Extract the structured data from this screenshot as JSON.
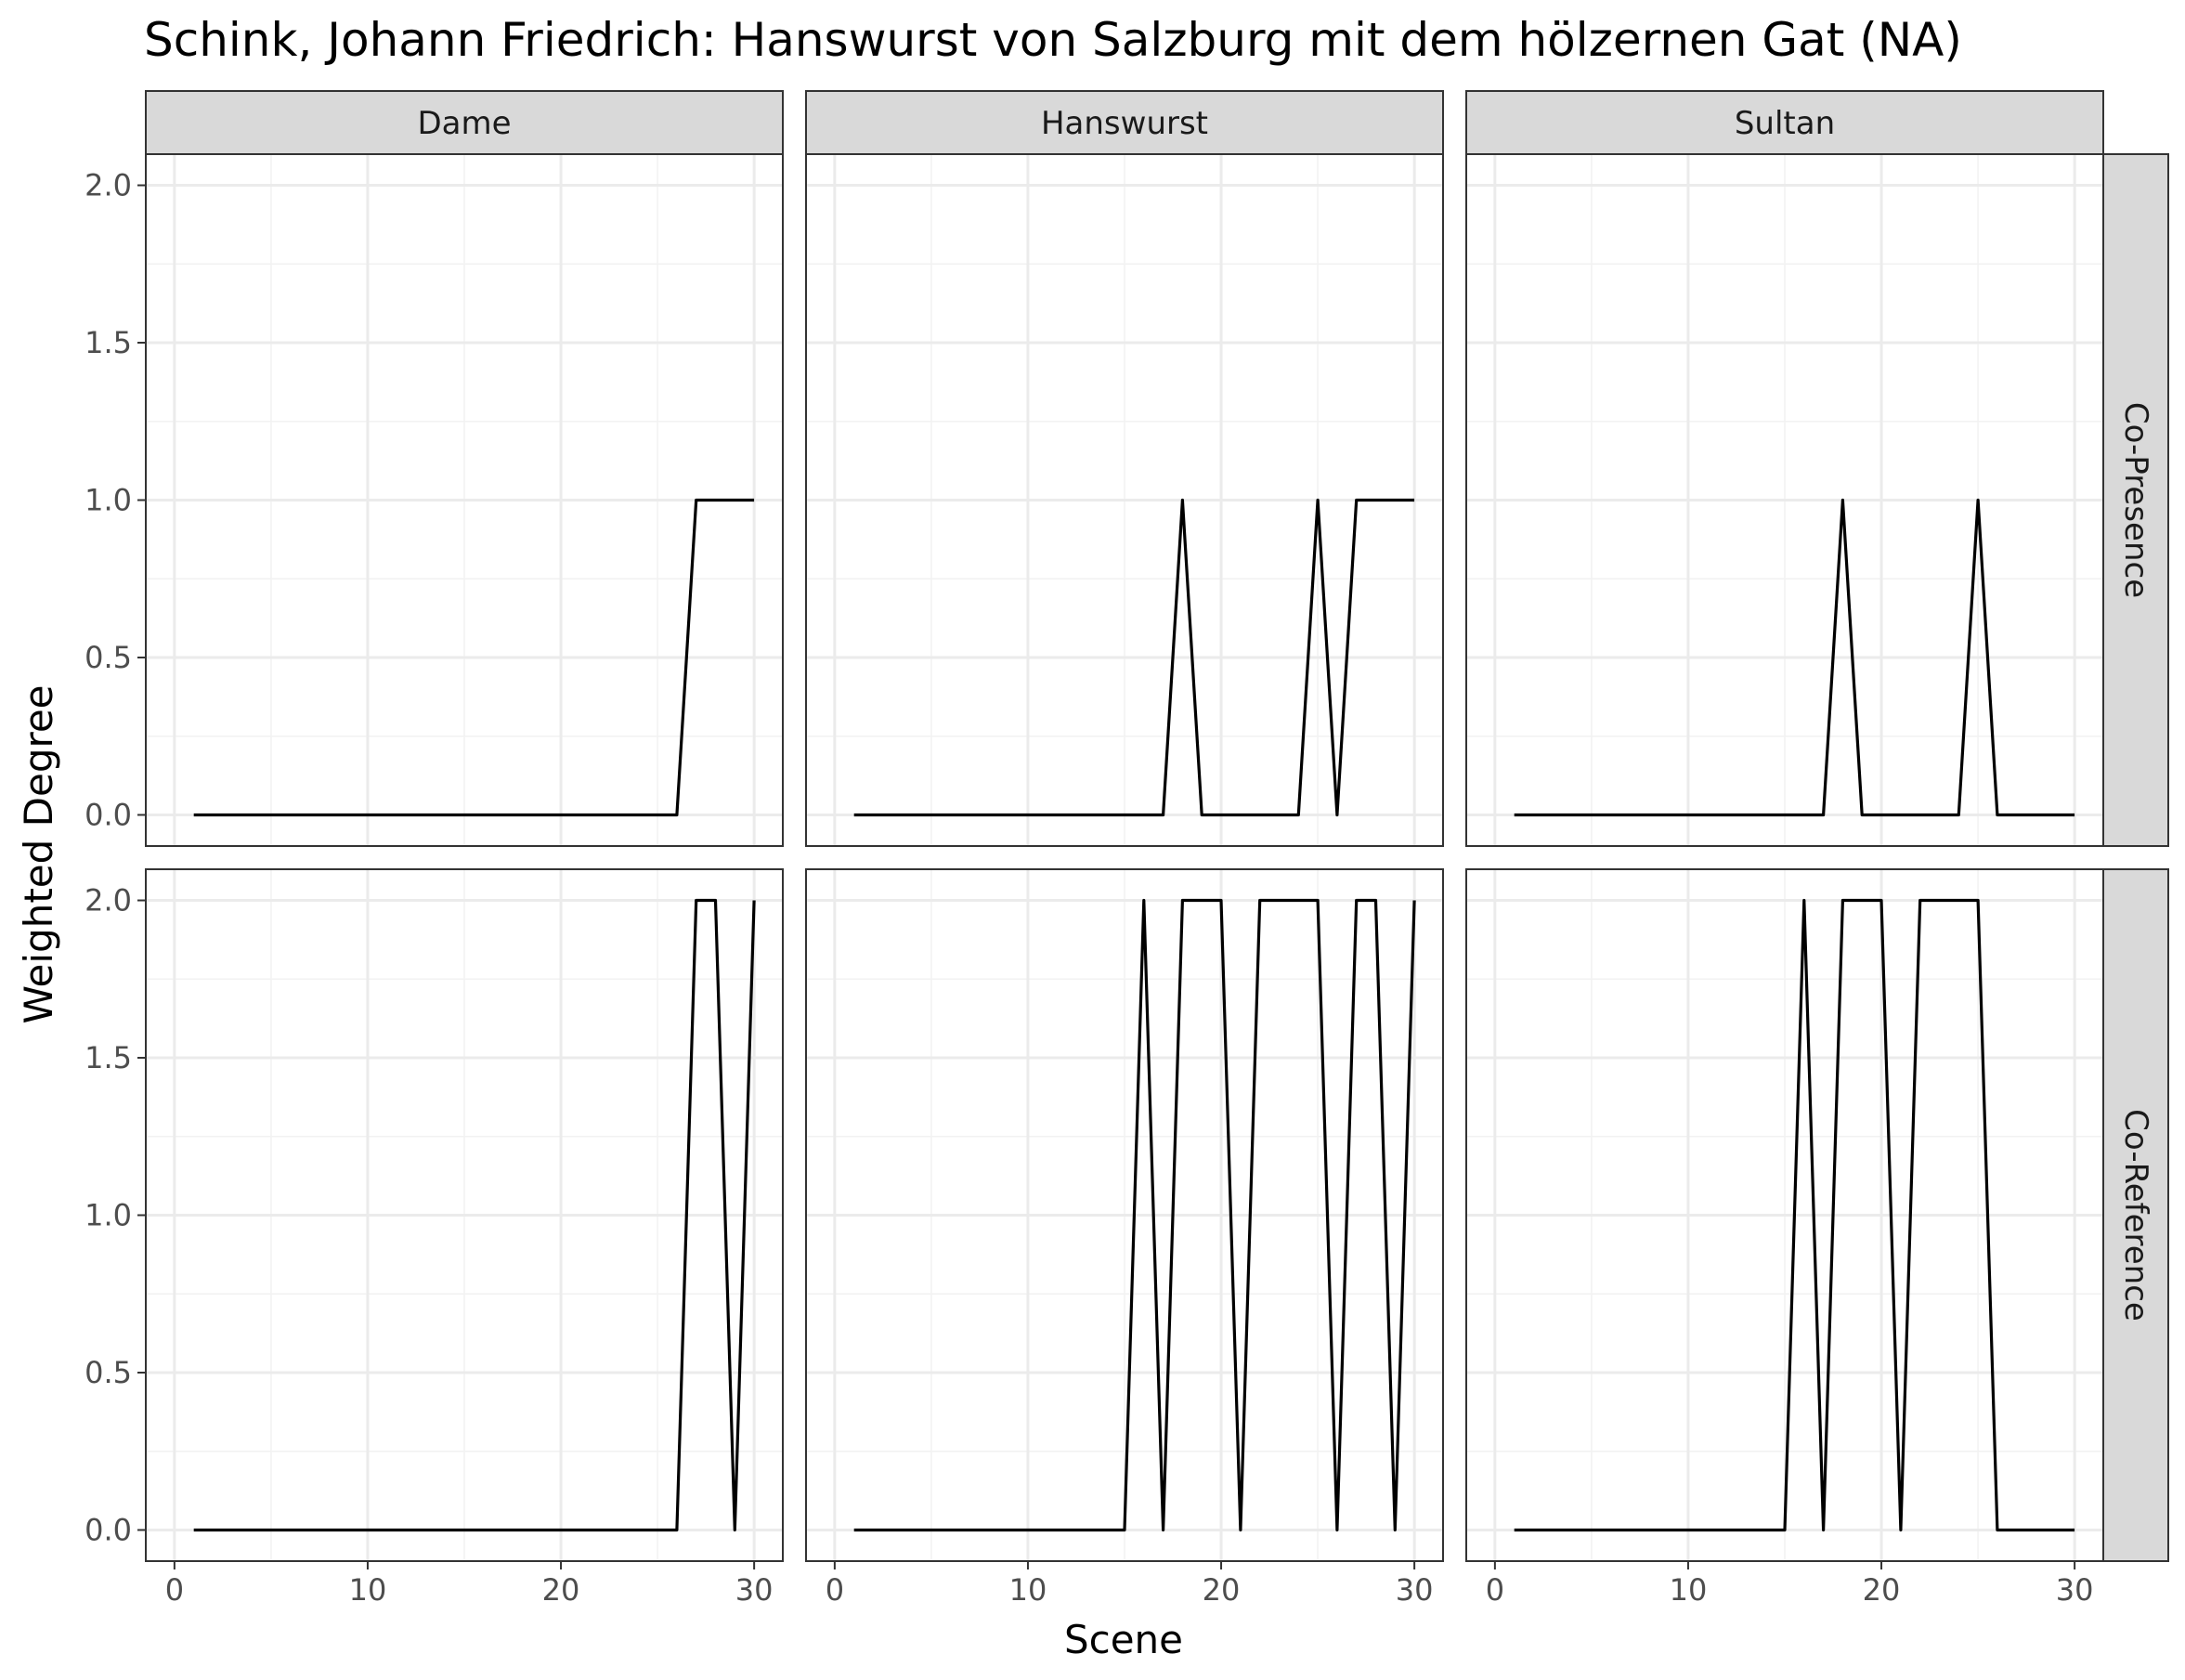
{
  "chart_data": {
    "type": "line",
    "title": "Schink, Johann Friedrich: Hanswurst von Salzburg mit dem hölzernen Gat (NA)",
    "xlabel": "Scene",
    "ylabel": "Weighted Degree",
    "xlim": [
      0,
      30
    ],
    "ylim": [
      0,
      2
    ],
    "x_ticks": [
      0,
      10,
      20,
      30
    ],
    "x_tick_labels": [
      "0",
      "10",
      "20",
      "30"
    ],
    "y_ticks": [
      0,
      0.5,
      1,
      1.5,
      2
    ],
    "y_tick_labels": [
      "0.0",
      "0.5",
      "1.0",
      "1.5",
      "2.0"
    ],
    "grid": true,
    "line_color": "#000000",
    "columns": [
      "Dame",
      "Hanswurst",
      "Sultan"
    ],
    "rows": [
      "Co-Presence",
      "Co-Reference"
    ],
    "x": [
      1,
      2,
      3,
      4,
      5,
      6,
      7,
      8,
      9,
      10,
      11,
      12,
      13,
      14,
      15,
      16,
      17,
      18,
      19,
      20,
      21,
      22,
      23,
      24,
      25,
      26,
      27,
      28,
      29,
      30
    ],
    "panels": [
      {
        "column": "Dame",
        "row": "Co-Presence",
        "values": [
          0,
          0,
          0,
          0,
          0,
          0,
          0,
          0,
          0,
          0,
          0,
          0,
          0,
          0,
          0,
          0,
          0,
          0,
          0,
          0,
          0,
          0,
          0,
          0,
          0,
          0,
          1,
          1,
          1,
          1
        ]
      },
      {
        "column": "Hanswurst",
        "row": "Co-Presence",
        "values": [
          0,
          0,
          0,
          0,
          0,
          0,
          0,
          0,
          0,
          0,
          0,
          0,
          0,
          0,
          0,
          0,
          0,
          1,
          0,
          0,
          0,
          0,
          0,
          0,
          1,
          0,
          1,
          1,
          1,
          1
        ]
      },
      {
        "column": "Sultan",
        "row": "Co-Presence",
        "values": [
          0,
          0,
          0,
          0,
          0,
          0,
          0,
          0,
          0,
          0,
          0,
          0,
          0,
          0,
          0,
          0,
          0,
          1,
          0,
          0,
          0,
          0,
          0,
          0,
          1,
          0,
          0,
          0,
          0,
          0
        ]
      },
      {
        "column": "Dame",
        "row": "Co-Reference",
        "values": [
          0,
          0,
          0,
          0,
          0,
          0,
          0,
          0,
          0,
          0,
          0,
          0,
          0,
          0,
          0,
          0,
          0,
          0,
          0,
          0,
          0,
          0,
          0,
          0,
          0,
          0,
          2,
          2,
          0,
          2
        ]
      },
      {
        "column": "Hanswurst",
        "row": "Co-Reference",
        "values": [
          0,
          0,
          0,
          0,
          0,
          0,
          0,
          0,
          0,
          0,
          0,
          0,
          0,
          0,
          0,
          2,
          0,
          2,
          2,
          2,
          0,
          2,
          2,
          2,
          2,
          0,
          2,
          2,
          0,
          2
        ]
      },
      {
        "column": "Sultan",
        "row": "Co-Reference",
        "values": [
          0,
          0,
          0,
          0,
          0,
          0,
          0,
          0,
          0,
          0,
          0,
          0,
          0,
          0,
          0,
          2,
          0,
          2,
          2,
          2,
          0,
          2,
          2,
          2,
          2,
          0,
          0,
          0,
          0,
          0
        ]
      }
    ]
  }
}
